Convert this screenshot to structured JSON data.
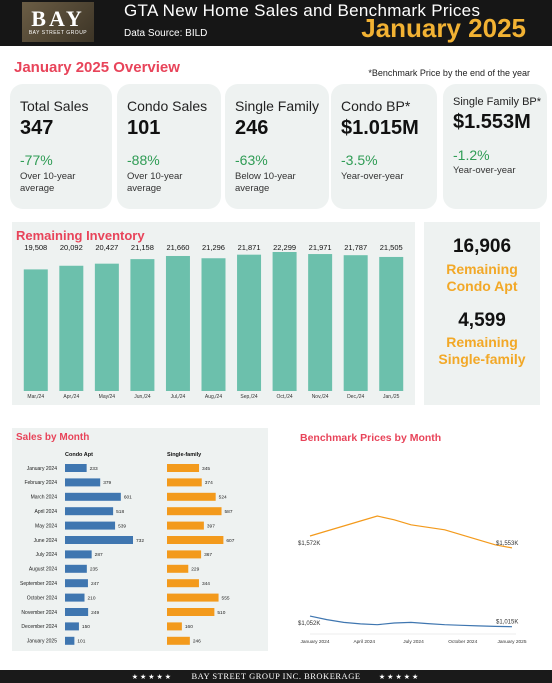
{
  "header": {
    "logo_text": "BAY",
    "logo_subtext": "BAY STREET GROUP",
    "title": "GTA New Home Sales and Benchmark Prices",
    "source": "Data Source: BILD",
    "month": "January 2025"
  },
  "overview": {
    "title": "January 2025 Overview",
    "note": "*Benchmark Price by the end of the year",
    "cards": [
      {
        "label": "Total Sales",
        "value": "347",
        "change": "-77%",
        "note": "Over 10-year average"
      },
      {
        "label": "Condo Sales",
        "value": "101",
        "change": "-88%",
        "note": "Over 10-year average"
      },
      {
        "label": "Single Family",
        "value": "246",
        "change": "-63%",
        "note": "Below 10-year average"
      },
      {
        "label": "Condo BP*",
        "value": "$1.015M",
        "change": "-3.5%",
        "note": "Year-over-year"
      },
      {
        "label": "Single Family BP*",
        "value": "$1.553M",
        "change": "-1.2%",
        "note": "Year-over-year"
      }
    ]
  },
  "remaining": {
    "condo_value": "16,906",
    "condo_label_line1": "Remaining",
    "condo_label_line2": "Condo Apt",
    "single_value": "4,599",
    "single_label_line1": "Remaining",
    "single_label_line2": "Single-family"
  },
  "colors": {
    "accent": "#e8445a",
    "teal_bar": "#6cc0ac",
    "condo_bar": "#3f76b0",
    "single_bar": "#f39a1c",
    "positive_text": "#2f9c55",
    "gold": "#f2b233"
  },
  "chart_data": [
    {
      "type": "bar",
      "title": "Remaining Inventory",
      "categories": [
        "Mar,/24",
        "Apr,/24",
        "May/24",
        "Jun,/24",
        "Jul,/24",
        "Aug,/24",
        "Sep,/24",
        "Oct,/24",
        "Nov,/24",
        "Dec,/24",
        "Jan,/25"
      ],
      "values": [
        19508,
        20092,
        20427,
        21158,
        21660,
        21296,
        21871,
        22299,
        21971,
        21787,
        21505
      ],
      "value_labels": [
        "19,508",
        "20,092",
        "20,427",
        "21,158",
        "21,660",
        "21,296",
        "21,871",
        "22,299",
        "21,971",
        "21,787",
        "21,505"
      ],
      "xlabel": "",
      "ylabel": ""
    },
    {
      "type": "bar",
      "title": "Sales by Month",
      "orientation": "horizontal",
      "categories": [
        "January 2024",
        "February 2024",
        "March 2024",
        "April 2024",
        "May 2024",
        "June 2024",
        "July 2024",
        "August 2024",
        "September 2024",
        "October 2024",
        "November 2024",
        "December 2024",
        "January 2025"
      ],
      "series": [
        {
          "name": "Condo Apt",
          "values": [
            233,
            379,
            601,
            518,
            539,
            732,
            287,
            235,
            247,
            210,
            249,
            150,
            101
          ]
        },
        {
          "name": "Single-family",
          "values": [
            345,
            374,
            524,
            587,
            397,
            607,
            367,
            229,
            344,
            555,
            510,
            160,
            246
          ]
        }
      ]
    },
    {
      "type": "line",
      "title": "Benchmark Prices by Month",
      "x_tick_labels": [
        "January 2024",
        "April 2024",
        "July 2024",
        "October 2024",
        "January 2025"
      ],
      "series": [
        {
          "name": "Single-family",
          "color": "#f39a1c",
          "start_label": "$1,572K",
          "end_label": "$1,553K",
          "values": [
            1572,
            1580,
            1588,
            1596,
            1604,
            1598,
            1590,
            1586,
            1582,
            1574,
            1566,
            1558,
            1553
          ]
        },
        {
          "name": "Condo",
          "color": "#3f76b0",
          "start_label": "$1,052K",
          "end_label": "$1,015K",
          "values": [
            1052,
            1040,
            1030,
            1025,
            1022,
            1028,
            1030,
            1026,
            1022,
            1020,
            1018,
            1016,
            1015
          ]
        }
      ]
    }
  ],
  "footer": {
    "stars": "★★★★★",
    "text": "BAY STREET GROUP INC. BROKERAGE"
  }
}
